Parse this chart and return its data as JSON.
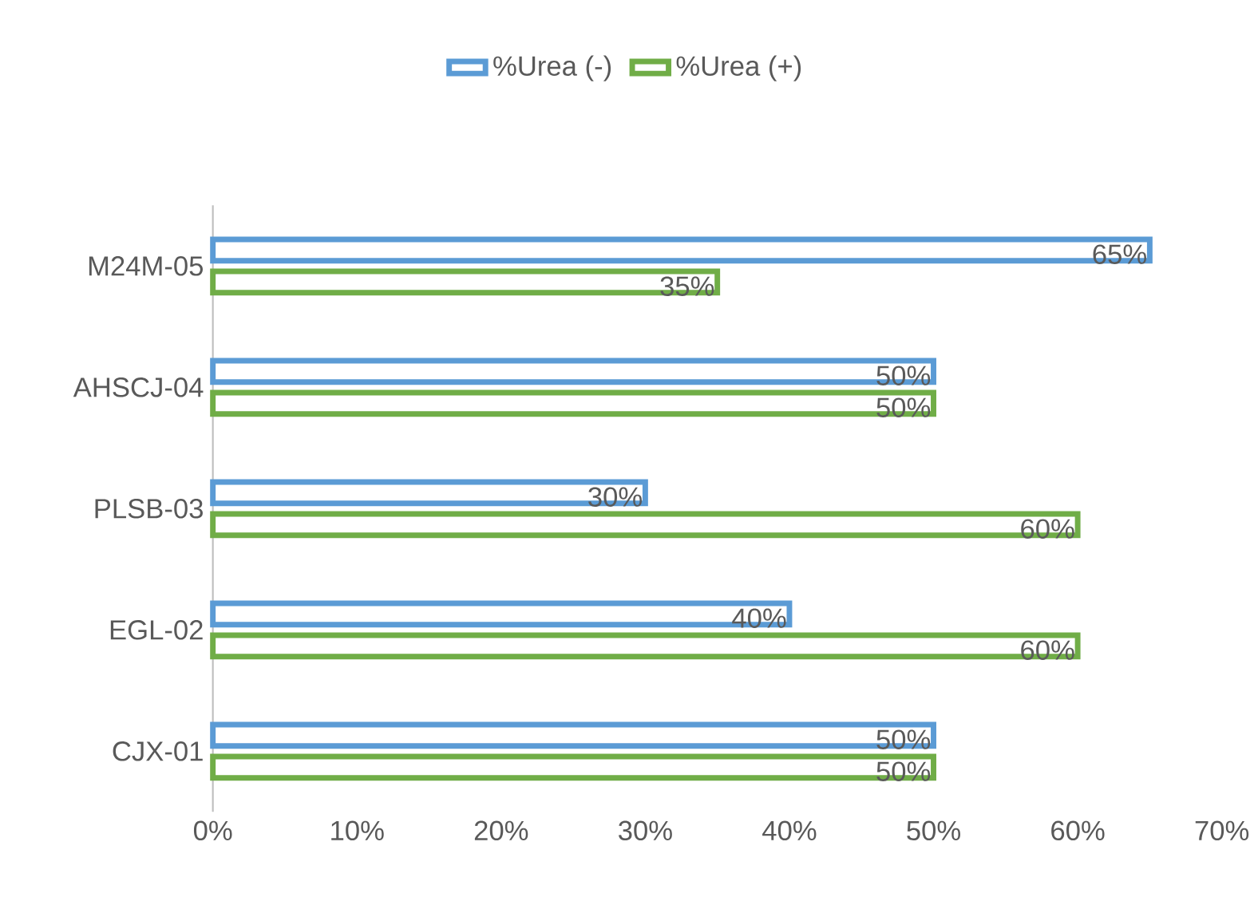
{
  "chart_data": {
    "type": "bar",
    "orientation": "horizontal",
    "categories": [
      "M24M-05",
      "AHSCJ-04",
      "PLSB-03",
      "EGL-02",
      "CJX-01"
    ],
    "series": [
      {
        "name": "%Urea (-)",
        "color": "#5b9bd5",
        "values": [
          65,
          50,
          30,
          40,
          50
        ],
        "value_labels": [
          "65%",
          "50%",
          "30%",
          "40%",
          "50%"
        ]
      },
      {
        "name": "%Urea (+)",
        "color": "#70ad47",
        "values": [
          35,
          50,
          60,
          60,
          50
        ],
        "value_labels": [
          "35%",
          "50%",
          "60%",
          "60%",
          "50%"
        ]
      }
    ],
    "xlim": [
      0,
      70
    ],
    "xticks": [
      {
        "value": 0,
        "label": "0%"
      },
      {
        "value": 10,
        "label": "10%"
      },
      {
        "value": 20,
        "label": "20%"
      },
      {
        "value": 30,
        "label": "30%"
      },
      {
        "value": 40,
        "label": "40%"
      },
      {
        "value": 50,
        "label": "50%"
      },
      {
        "value": 60,
        "label": "60%"
      },
      {
        "value": 70,
        "label": "70%"
      }
    ],
    "legend": "top",
    "grid": false
  }
}
